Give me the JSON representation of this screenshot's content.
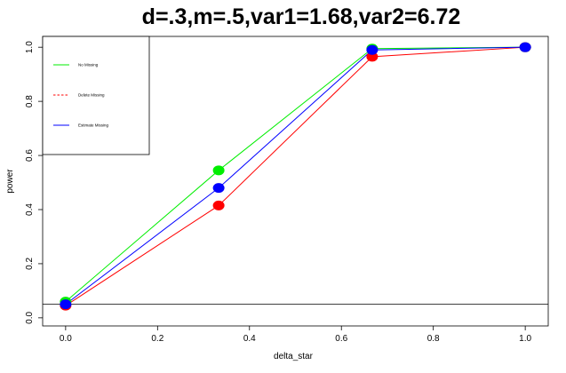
{
  "chart_data": {
    "type": "line",
    "title": "d=.3,m=.5,var1=1.68,var2=6.72",
    "xlabel": "delta_star",
    "ylabel": "power",
    "xlim": [
      -0.05,
      1.05
    ],
    "ylim": [
      -0.03,
      1.04
    ],
    "x_ticks": [
      "0.0",
      "0.2",
      "0.4",
      "0.6",
      "0.8",
      "1.0"
    ],
    "y_ticks": [
      "0.0",
      "0.2",
      "0.4",
      "0.6",
      "0.8",
      "1.0"
    ],
    "x": [
      0,
      0.333,
      0.667,
      1.0
    ],
    "reference_line_y": 0.05,
    "legend_position": "top-left",
    "series": [
      {
        "name": "No Missing",
        "color": "#00ee00",
        "line_style": "solid",
        "values": [
          0.06,
          0.545,
          0.995,
          1.0
        ]
      },
      {
        "name": "Delete Missing",
        "color": "#ff0000",
        "line_style": "dashed",
        "values": [
          0.045,
          0.415,
          0.965,
          1.0
        ]
      },
      {
        "name": "Estimate Missing",
        "color": "#0000ff",
        "line_style": "solid",
        "values": [
          0.05,
          0.48,
          0.99,
          1.0
        ]
      }
    ]
  }
}
